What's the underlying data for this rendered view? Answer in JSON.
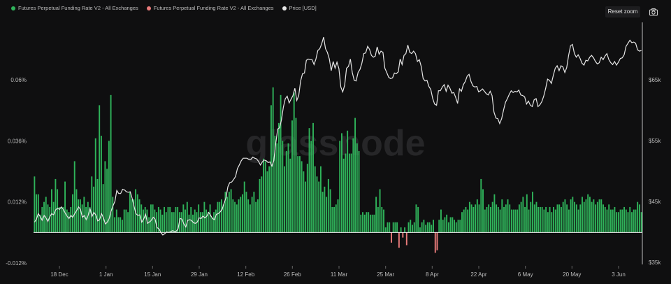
{
  "toolbar": {
    "reset_zoom_label": "Reset zoom",
    "camera_icon": "camera-icon"
  },
  "colors": {
    "positive": "#2fb35a",
    "negative": "#e97b7b",
    "price": "#e6e6e6",
    "background": "#0f0f10"
  },
  "watermark": "glassnode",
  "chart_data": {
    "type": "bar+line",
    "legend": [
      {
        "label": "Futures Perpetual Funding Rate V2 - All Exchanges",
        "color": "#2fb35a"
      },
      {
        "label": "Futures Perpetual Funding Rate V2 - All Exchanges",
        "color": "#e97b7b"
      },
      {
        "label": "Price [USD]",
        "color": "#e6e6e6"
      }
    ],
    "x_ticks": [
      "18 Dec",
      "1 Jan",
      "15 Jan",
      "29 Jan",
      "12 Feb",
      "26 Feb",
      "11 Mar",
      "25 Mar",
      "8 Apr",
      "22 Apr",
      "6 May",
      "20 May",
      "3 Jun"
    ],
    "y_left_ticks": [
      "-0.012%",
      "0.012%",
      "0.036%",
      "0.06%"
    ],
    "y_left_range": [
      -0.012,
      0.07
    ],
    "y_right_ticks": [
      "$35k",
      "$45k",
      "$55k",
      "$65k"
    ],
    "y_right_range": [
      35000,
      72000
    ],
    "funding_rate": [
      0.022,
      0.015,
      0.015,
      0.007,
      0.01,
      0.012,
      0.014,
      0.011,
      0.01,
      0.017,
      0.012,
      0.021,
      0.017,
      0.01,
      0.01,
      0.01,
      0.02,
      0.009,
      0.008,
      0.01,
      0.015,
      0.028,
      0.017,
      0.013,
      0.013,
      0.011,
      0.014,
      0.01,
      0.012,
      0.01,
      0.022,
      0.018,
      0.037,
      0.021,
      0.05,
      0.038,
      0.019,
      0.028,
      0.025,
      0.036,
      0.054,
      0.014,
      0.006,
      0.009,
      0.006,
      0.006,
      0.005,
      0.009,
      0.009,
      0.008,
      0.016,
      0.013,
      0.013,
      0.017,
      0.015,
      0.013,
      0.011,
      0.009,
      0.01,
      0.009,
      0.006,
      0.011,
      0.011,
      0.009,
      0.008,
      0.01,
      0.009,
      0.007,
      0.01,
      0.008,
      0.01,
      0.01,
      0.008,
      0.008,
      0.01,
      0.01,
      0.008,
      0.008,
      0.011,
      0.009,
      0.012,
      0.007,
      0.01,
      0.007,
      0.009,
      0.008,
      0.011,
      0.008,
      0.008,
      0.012,
      0.009,
      0.008,
      0.011,
      0.006,
      0.008,
      0.009,
      0.012,
      0.012,
      0.013,
      0.011,
      0.016,
      0.014,
      0.016,
      0.017,
      0.013,
      0.012,
      0.011,
      0.013,
      0.014,
      0.015,
      0.02,
      0.016,
      0.013,
      0.011,
      0.014,
      0.016,
      0.012,
      0.013,
      0.021,
      0.022,
      0.029,
      0.028,
      0.024,
      0.026,
      0.05,
      0.057,
      0.038,
      0.035,
      0.043,
      0.054,
      0.036,
      0.026,
      0.032,
      0.035,
      0.029,
      0.044,
      0.055,
      0.045,
      0.03,
      0.03,
      0.028,
      0.024,
      0.02,
      0.027,
      0.041,
      0.036,
      0.043,
      0.026,
      0.022,
      0.02,
      0.026,
      0.016,
      0.018,
      0.014,
      0.021,
      0.017,
      0.01,
      0.01,
      0.011,
      0.013,
      0.036,
      0.039,
      0.029,
      0.031,
      0.04,
      0.031,
      0.031,
      0.037,
      0.045,
      0.035,
      0.032,
      0.007,
      0.008,
      0.007,
      0.008,
      0.008,
      0.007,
      0.007,
      0.007,
      0.014,
      0.01,
      0.017,
      0.01,
      0.009,
      0.002,
      0.004,
      0.004,
      -0.004,
      0.004,
      0.004,
      0.004,
      -0.006,
      0.002,
      -0.002,
      0.002,
      -0.005,
      0.004,
      0.005,
      0.003,
      0.004,
      0.011,
      0.01,
      0.002,
      0.004,
      0.005,
      0.003,
      0.004,
      0.004,
      0.003,
      0.005,
      -0.008,
      -0.007,
      0.005,
      0.009,
      0.005,
      0.006,
      0.007,
      0.004,
      0.006,
      0.006,
      0.005,
      0.004,
      0.005,
      0.005,
      0.008,
      0.009,
      0.01,
      0.009,
      0.012,
      0.011,
      0.01,
      0.011,
      0.013,
      0.011,
      0.021,
      0.017,
      0.009,
      0.01,
      0.011,
      0.01,
      0.012,
      0.015,
      0.011,
      0.01,
      0.009,
      0.013,
      0.01,
      0.011,
      0.013,
      0.011,
      0.009,
      0.009,
      0.009,
      0.009,
      0.011,
      0.012,
      0.014,
      0.01,
      0.015,
      0.009,
      0.012,
      0.016,
      0.011,
      0.012,
      0.01,
      0.01,
      0.01,
      0.009,
      0.01,
      0.008,
      0.01,
      0.008,
      0.01,
      0.009,
      0.011,
      0.011,
      0.01,
      0.012,
      0.013,
      0.011,
      0.009,
      0.013,
      0.014,
      0.012,
      0.011,
      0.009,
      0.011,
      0.014,
      0.012,
      0.013,
      0.015,
      0.014,
      0.012,
      0.013,
      0.011,
      0.012,
      0.013,
      0.013,
      0.011,
      0.01,
      0.009,
      0.011,
      0.009,
      0.009,
      0.01,
      0.008,
      0.008,
      0.009,
      0.009,
      0.01,
      0.009,
      0.008,
      0.01,
      0.008,
      0.009,
      0.009,
      0.012,
      0.011,
      0.008
    ],
    "price": [
      41600,
      42100,
      43000,
      42500,
      41900,
      42700,
      42300,
      41700,
      42500,
      43000,
      42800,
      43600,
      43900,
      43700,
      44100,
      43700,
      43100,
      42600,
      42200,
      42700,
      42400,
      43000,
      43500,
      44100,
      43700,
      42400,
      42700,
      42000,
      42700,
      43900,
      42500,
      43200,
      42800,
      41800,
      42000,
      43000,
      42300,
      41300,
      41600,
      42200,
      43400,
      44300,
      45000,
      46800,
      46300,
      46300,
      47000,
      46900,
      46600,
      46500,
      46600,
      45500,
      44200,
      43000,
      42700,
      42800,
      41600,
      42100,
      42900,
      41400,
      41600,
      41900,
      42400,
      42100,
      40700,
      40500,
      39900,
      39500,
      39700,
      40000,
      39900,
      40000,
      40200,
      40100,
      40100,
      40500,
      42200,
      42100,
      41300,
      40800,
      41900,
      42000,
      41900,
      41500,
      41400,
      41600,
      42300,
      42200,
      42600,
      42300,
      42600,
      43200,
      42700,
      42200,
      42000,
      42900,
      43000,
      43300,
      43700,
      44700,
      45600,
      47400,
      48100,
      48200,
      48600,
      49100,
      50400,
      51000,
      51700,
      52100,
      52100,
      52100,
      51900,
      51900,
      52300,
      52100,
      52000,
      51600,
      51000,
      51500,
      51800,
      51700,
      51400,
      51500,
      50800,
      51700,
      54500,
      56900,
      57100,
      58400,
      60500,
      61900,
      62300,
      61200,
      61800,
      62400,
      63600,
      61600,
      62400,
      64800,
      66000,
      66100,
      68200,
      68400,
      68300,
      68300,
      67500,
      68400,
      69800,
      70100,
      70900,
      72000,
      70100,
      69500,
      68400,
      66500,
      68000,
      66900,
      67900,
      66800,
      63800,
      63000,
      64100,
      66900,
      67200,
      68400,
      66200,
      64900,
      64800,
      66200,
      66700,
      67700,
      69300,
      69400,
      70500,
      70000,
      69000,
      68700,
      68900,
      70400,
      69200,
      69700,
      69500,
      66900,
      66200,
      65400,
      65200,
      65300,
      66100,
      66000,
      66300,
      68400,
      67500,
      69000,
      69300,
      70700,
      69500,
      69300,
      69700,
      69300,
      68000,
      68300,
      67200,
      65200,
      64800,
      64900,
      63900,
      63400,
      61900,
      61000,
      60800,
      63200,
      63200,
      63800,
      64200,
      63100,
      64100,
      63600,
      62800,
      62900,
      62100,
      61100,
      63500,
      63100,
      64200,
      64700,
      65600,
      65900,
      64700,
      64000,
      63800,
      63900,
      63000,
      63200,
      63500,
      63100,
      62700,
      62500,
      63100,
      62400,
      59700,
      58700,
      58600,
      57800,
      58600,
      60000,
      61300,
      61900,
      62600,
      63200,
      62900,
      63100,
      63000,
      63300,
      62500,
      62400,
      62200,
      61000,
      61500,
      60800,
      60600,
      61700,
      61900,
      60600,
      60900,
      61400,
      62300,
      63600,
      65100,
      64900,
      64400,
      65700,
      66900,
      67300,
      66500,
      67300,
      67100,
      66200,
      67000,
      69000,
      70600,
      70800,
      69300,
      68700,
      69100,
      68500,
      67700,
      67400,
      68200,
      68100,
      68700,
      69000,
      68600,
      68000,
      67600,
      67800,
      68700,
      68300,
      68900,
      69300,
      68300,
      67800,
      67500,
      68000,
      67400,
      67900,
      68500,
      68600,
      69100,
      70500,
      71000,
      71500,
      71100,
      71200,
      71000,
      69900,
      69700,
      69800
    ]
  }
}
